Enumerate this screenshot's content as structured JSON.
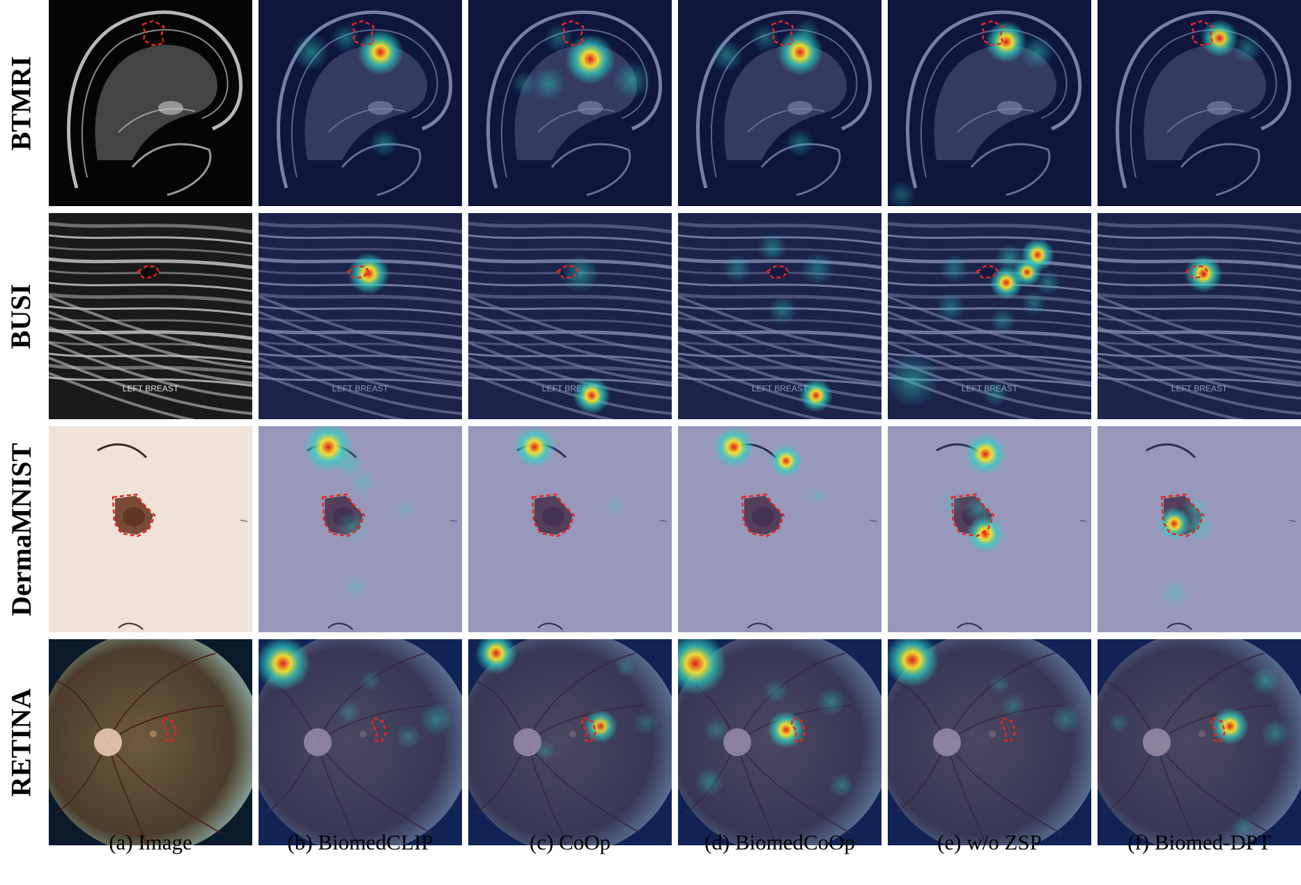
{
  "rows": [
    {
      "label": "BTMRI",
      "kind": "mri",
      "overlay_text": ""
    },
    {
      "label": "BUSI",
      "kind": "ultrasound",
      "overlay_text": "LEFT BREAST"
    },
    {
      "label": "DermaMNIST",
      "kind": "skin",
      "overlay_text": ""
    },
    {
      "label": "RETINA",
      "kind": "retina",
      "overlay_text": ""
    }
  ],
  "columns": [
    {
      "caption": "(a) Image",
      "heatmap": false
    },
    {
      "caption": "(b) BiomedCLIP",
      "heatmap": true
    },
    {
      "caption": "(c) CoOp",
      "heatmap": true
    },
    {
      "caption": "(d) BiomedCoOp",
      "heatmap": true
    },
    {
      "caption": "(e) w/o ZSP",
      "heatmap": true
    },
    {
      "caption": "(f) Biomed-DPT",
      "heatmap": true
    }
  ],
  "colors": {
    "lesion_outline": "#e8261f",
    "heat_low": "#1d2f8f",
    "heat_mid": "#2fd3c6",
    "heat_high": "#f5e332",
    "heat_peak": "#e11d1d"
  }
}
